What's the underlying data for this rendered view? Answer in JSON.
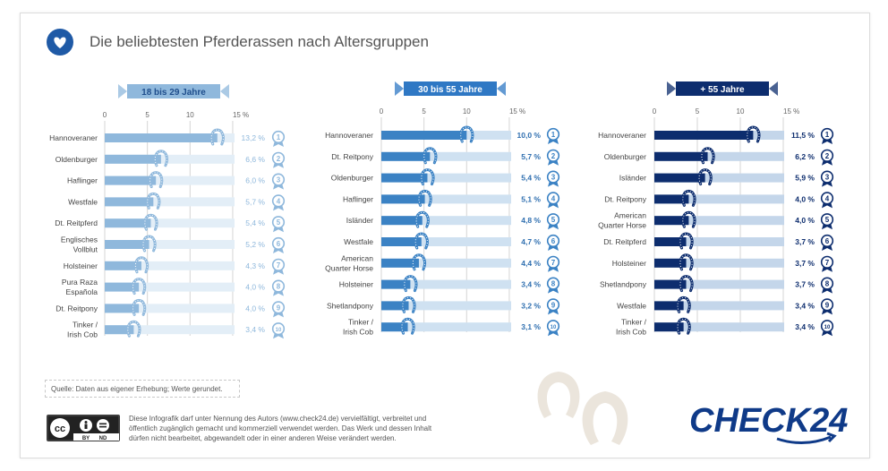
{
  "title": "Die beliebtesten Pferderassen nach Altersgruppen",
  "source": "Quelle: Daten aus eigener Erhebung; Werte gerundet.",
  "license": "Diese Infografik darf unter Nennung des Autors (www.check24.de) vervielfältigt, verbreitet und öffentlich zugänglich gemacht und kommerziell verwendet werden. Das Werk und dessen Inhalt dürfen nicht bearbeitet, abgewandelt oder in einer anderen Weise verändert werden.",
  "cc": {
    "by": "BY",
    "nd": "ND",
    "cc": "cc"
  },
  "brand": "CHECK24",
  "chart_data": [
    {
      "type": "bar",
      "title": "18 bis 29 Jahre",
      "ticks": [
        0,
        5,
        10,
        15
      ],
      "tick_labels": [
        "0",
        "5",
        "10",
        "15 %"
      ],
      "xlim": [
        0,
        15
      ],
      "categories": [
        "Hannoveraner",
        "Oldenburger",
        "Haflinger",
        "Westfale",
        "Dt. Reitpferd",
        "Englisches Vollblut",
        "Holsteiner",
        "Pura Raza Española",
        "Dt. Reitpony",
        "Tinker / Irish Cob"
      ],
      "category_lines": [
        [
          "Hannoveraner"
        ],
        [
          "Oldenburger"
        ],
        [
          "Haflinger"
        ],
        [
          "Westfale"
        ],
        [
          "Dt. Reitpferd"
        ],
        [
          "Englisches",
          "Vollblut"
        ],
        [
          "Holsteiner"
        ],
        [
          "Pura Raza",
          "Española"
        ],
        [
          "Dt. Reitpony"
        ],
        [
          "Tinker /",
          "Irish Cob"
        ]
      ],
      "values": [
        13.2,
        6.6,
        6.0,
        5.7,
        5.4,
        5.2,
        4.3,
        4.0,
        4.0,
        3.4
      ],
      "labels": [
        "13,2 %",
        "6,6 %",
        "6,0 %",
        "5,7 %",
        "5,4 %",
        "5,2 %",
        "4,3 %",
        "4,0 %",
        "4,0 %",
        "3,4 %"
      ],
      "ranks": [
        "1",
        "2",
        "3",
        "4",
        "5",
        "6",
        "7",
        "8",
        "9",
        "10"
      ],
      "colors": {
        "bar": "#8fb8dc",
        "track": "#e3eef7",
        "label": "#8fb8dc",
        "banner": "#8fb8dc",
        "banner_text": "#1f4e8c"
      }
    },
    {
      "type": "bar",
      "title": "30 bis 55 Jahre",
      "ticks": [
        0,
        5,
        10,
        15
      ],
      "tick_labels": [
        "0",
        "5",
        "10",
        "15 %"
      ],
      "xlim": [
        0,
        15
      ],
      "categories": [
        "Hannoveraner",
        "Dt. Reitpony",
        "Oldenburger",
        "Haflinger",
        "Isländer",
        "Westfale",
        "American Quarter Horse",
        "Holsteiner",
        "Shetlandpony",
        "Tinker / Irish Cob"
      ],
      "category_lines": [
        [
          "Hannoveraner"
        ],
        [
          "Dt. Reitpony"
        ],
        [
          "Oldenburger"
        ],
        [
          "Haflinger"
        ],
        [
          "Isländer"
        ],
        [
          "Westfale"
        ],
        [
          "American",
          "Quarter Horse"
        ],
        [
          "Holsteiner"
        ],
        [
          "Shetlandpony"
        ],
        [
          "Tinker /",
          "Irish Cob"
        ]
      ],
      "values": [
        10.0,
        5.7,
        5.4,
        5.1,
        4.8,
        4.7,
        4.4,
        3.4,
        3.2,
        3.1
      ],
      "labels": [
        "10,0 %",
        "5,7 %",
        "5,4 %",
        "5,1 %",
        "4,8 %",
        "4,7 %",
        "4,4 %",
        "3,4 %",
        "3,2 %",
        "3,1 %"
      ],
      "ranks": [
        "1",
        "2",
        "3",
        "4",
        "5",
        "6",
        "7",
        "8",
        "9",
        "10"
      ],
      "colors": {
        "bar": "#3b82c4",
        "track": "#cfe1f1",
        "label": "#2f6fb0",
        "banner": "#2f78c4",
        "banner_text": "#ffffff"
      }
    },
    {
      "type": "bar",
      "title": "+ 55 Jahre",
      "ticks": [
        0,
        5,
        10,
        15
      ],
      "tick_labels": [
        "0",
        "5",
        "10",
        "15 %"
      ],
      "xlim": [
        0,
        15
      ],
      "categories": [
        "Hannoveraner",
        "Oldenburger",
        "Isländer",
        "Dt. Reitpony",
        "American Quarter Horse",
        "Dt. Reitpferd",
        "Holsteiner",
        "Shetlandpony",
        "Westfale",
        "Tinker / Irish Cob"
      ],
      "category_lines": [
        [
          "Hannoveraner"
        ],
        [
          "Oldenburger"
        ],
        [
          "Isländer"
        ],
        [
          "Dt. Reitpony"
        ],
        [
          "American",
          "Quarter Horse"
        ],
        [
          "Dt. Reitpferd"
        ],
        [
          "Holsteiner"
        ],
        [
          "Shetlandpony"
        ],
        [
          "Westfale"
        ],
        [
          "Tinker /",
          "Irish Cob"
        ]
      ],
      "values": [
        11.5,
        6.2,
        5.9,
        4.0,
        4.0,
        3.7,
        3.7,
        3.7,
        3.4,
        3.4
      ],
      "labels": [
        "11,5 %",
        "6,2 %",
        "5,9 %",
        "4,0 %",
        "4,0 %",
        "3,7 %",
        "3,7 %",
        "3,7 %",
        "3,4 %",
        "3,4 %"
      ],
      "ranks": [
        "1",
        "2",
        "3",
        "4",
        "5",
        "6",
        "7",
        "8",
        "9",
        "10"
      ],
      "colors": {
        "bar": "#0d2d6e",
        "track": "#c4d6ea",
        "label": "#0d2d6e",
        "banner": "#0d2d6e",
        "banner_text": "#ffffff"
      }
    }
  ]
}
